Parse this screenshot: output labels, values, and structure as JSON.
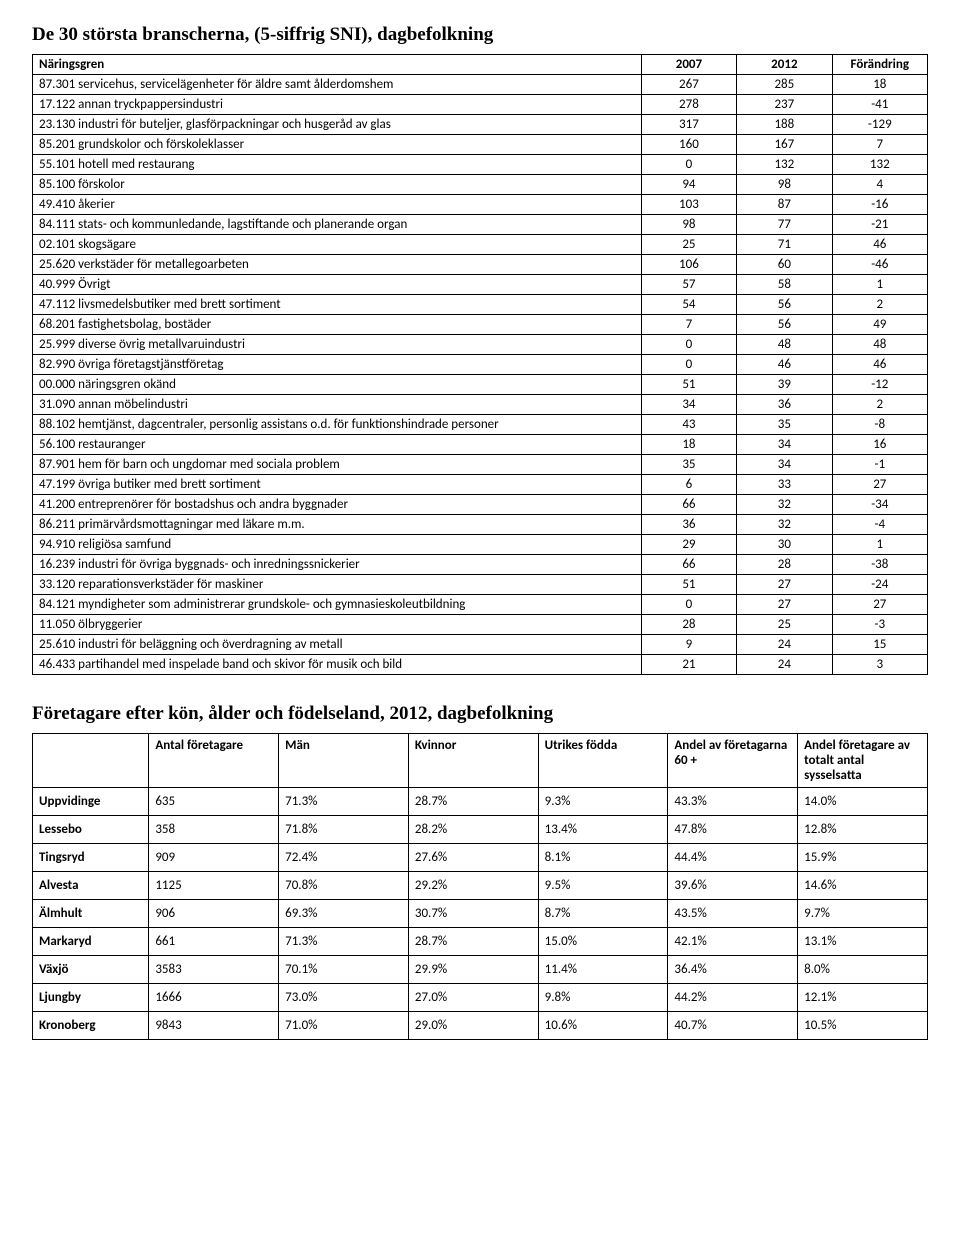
{
  "section1": {
    "title": "De 30 största branscherna, (5-siffrig SNI), dagbefolkning",
    "headers": [
      "Näringsgren",
      "2007",
      "2012",
      "Förändring"
    ],
    "rows": [
      [
        "87.301 servicehus, servicelägenheter för äldre samt ålderdomshem",
        "267",
        "285",
        "18"
      ],
      [
        "17.122 annan tryckpappersindustri",
        "278",
        "237",
        "-41"
      ],
      [
        "23.130 industri för buteljer, glasförpackningar och husgeråd av glas",
        "317",
        "188",
        "-129"
      ],
      [
        "85.201 grundskolor och förskoleklasser",
        "160",
        "167",
        "7"
      ],
      [
        "55.101 hotell med restaurang",
        "0",
        "132",
        "132"
      ],
      [
        "85.100 förskolor",
        "94",
        "98",
        "4"
      ],
      [
        "49.410 åkerier",
        "103",
        "87",
        "-16"
      ],
      [
        "84.111 stats- och kommunledande, lagstiftande och planerande organ",
        "98",
        "77",
        "-21"
      ],
      [
        "02.101 skogsägare",
        "25",
        "71",
        "46"
      ],
      [
        "25.620 verkstäder för metallegoarbeten",
        "106",
        "60",
        "-46"
      ],
      [
        "40.999 Övrigt",
        "57",
        "58",
        "1"
      ],
      [
        "47.112 livsmedelsbutiker med brett sortiment",
        "54",
        "56",
        "2"
      ],
      [
        "68.201 fastighetsbolag, bostäder",
        "7",
        "56",
        "49"
      ],
      [
        "25.999 diverse övrig metallvaruindustri",
        "0",
        "48",
        "48"
      ],
      [
        "82.990 övriga företagstjänstföretag",
        "0",
        "46",
        "46"
      ],
      [
        "00.000 näringsgren okänd",
        "51",
        "39",
        "-12"
      ],
      [
        "31.090 annan möbelindustri",
        "34",
        "36",
        "2"
      ],
      [
        "88.102 hemtjänst, dagcentraler, personlig assistans o.d. för funktionshindrade personer",
        "43",
        "35",
        "-8"
      ],
      [
        "56.100 restauranger",
        "18",
        "34",
        "16"
      ],
      [
        "87.901 hem för barn och ungdomar med sociala problem",
        "35",
        "34",
        "-1"
      ],
      [
        "47.199 övriga butiker med brett sortiment",
        "6",
        "33",
        "27"
      ],
      [
        "41.200 entreprenörer för bostadshus och andra byggnader",
        "66",
        "32",
        "-34"
      ],
      [
        "86.211 primärvårdsmottagningar med läkare m.m.",
        "36",
        "32",
        "-4"
      ],
      [
        "94.910 religiösa samfund",
        "29",
        "30",
        "1"
      ],
      [
        "16.239 industri för övriga byggnads- och inredningssnickerier",
        "66",
        "28",
        "-38"
      ],
      [
        "33.120 reparationsverkstäder för maskiner",
        "51",
        "27",
        "-24"
      ],
      [
        "84.121 myndigheter som administrerar grundskole- och gymnasieskoleutbildning",
        "0",
        "27",
        "27"
      ],
      [
        "11.050 ölbryggerier",
        "28",
        "25",
        "-3"
      ],
      [
        "25.610 industri för beläggning och överdragning av metall",
        "9",
        "24",
        "15"
      ],
      [
        "46.433 partihandel med inspelade band och skivor för musik och bild",
        "21",
        "24",
        "3"
      ]
    ]
  },
  "section2": {
    "title": "Företagare efter kön, ålder och födelseland, 2012, dagbefolkning",
    "headers": [
      "",
      "Antal företagare",
      "Män",
      "Kvinnor",
      "Utrikes födda",
      "Andel av företagarna 60 +",
      "Andel företagare av totalt antal sysselsatta"
    ],
    "rows": [
      [
        "Uppvidinge",
        "635",
        "71.3%",
        "28.7%",
        "9.3%",
        "43.3%",
        "14.0%"
      ],
      [
        "Lessebo",
        "358",
        "71.8%",
        "28.2%",
        "13.4%",
        "47.8%",
        "12.8%"
      ],
      [
        "Tingsryd",
        "909",
        "72.4%",
        "27.6%",
        "8.1%",
        "44.4%",
        "15.9%"
      ],
      [
        "Alvesta",
        "1125",
        "70.8%",
        "29.2%",
        "9.5%",
        "39.6%",
        "14.6%"
      ],
      [
        "Älmhult",
        "906",
        "69.3%",
        "30.7%",
        "8.7%",
        "43.5%",
        "9.7%"
      ],
      [
        "Markaryd",
        "661",
        "71.3%",
        "28.7%",
        "15.0%",
        "42.1%",
        "13.1%"
      ],
      [
        "Växjö",
        "3583",
        "70.1%",
        "29.9%",
        "11.4%",
        "36.4%",
        "8.0%"
      ],
      [
        "Ljungby",
        "1666",
        "73.0%",
        "27.0%",
        "9.8%",
        "44.2%",
        "12.1%"
      ],
      [
        "Kronoberg",
        "9843",
        "71.0%",
        "29.0%",
        "10.6%",
        "40.7%",
        "10.5%"
      ]
    ]
  }
}
